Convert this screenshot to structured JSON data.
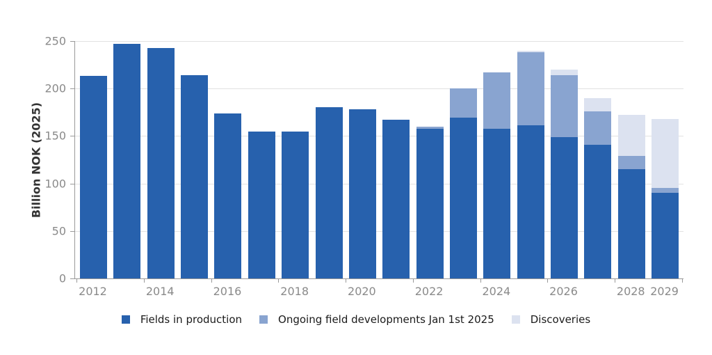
{
  "chart_data": {
    "type": "bar",
    "stacked": true,
    "title": "",
    "xlabel": "",
    "ylabel": "Billion NOK (2025)",
    "ylim": [
      0,
      250
    ],
    "yticks": [
      0,
      50,
      100,
      150,
      200,
      250
    ],
    "grid": "horizontal",
    "legend_position": "bottom",
    "categories": [
      "2012",
      "2013",
      "2014",
      "2015",
      "2016",
      "2017",
      "2018",
      "2019",
      "2020",
      "2021",
      "2022",
      "2023",
      "2024",
      "2025",
      "2026",
      "2027",
      "2028",
      "2029"
    ],
    "series": [
      {
        "name": "Fields in production",
        "color": "#2761ad",
        "values": [
          213,
          247,
          243,
          214,
          174,
          155,
          155,
          180,
          178,
          167,
          158,
          169,
          158,
          161,
          149,
          141,
          115,
          90
        ]
      },
      {
        "name": "Ongoing field developments Jan 1st 2025",
        "color": "#89a4d0",
        "values": [
          0,
          0,
          0,
          0,
          0,
          0,
          0,
          0,
          0,
          0,
          2,
          31,
          59,
          77,
          65,
          35,
          14,
          5
        ]
      },
      {
        "name": "Discoveries",
        "color": "#dce2f0",
        "values": [
          0,
          0,
          0,
          0,
          0,
          0,
          0,
          0,
          0,
          0,
          0,
          0,
          0,
          2,
          6,
          14,
          43,
          73
        ]
      }
    ],
    "stack_totals": [
      213,
      247,
      243,
      214,
      174,
      155,
      155,
      180,
      178,
      167,
      160,
      200,
      217,
      240,
      220,
      190,
      172,
      168
    ],
    "x_axis_labels": [
      {
        "text": "2012",
        "bar_index": 0
      },
      {
        "text": "2014",
        "bar_index": 2
      },
      {
        "text": "2016",
        "bar_index": 4
      },
      {
        "text": "2018",
        "bar_index": 6
      },
      {
        "text": "2020",
        "bar_index": 8
      },
      {
        "text": "2022",
        "bar_index": 10
      },
      {
        "text": "2024",
        "bar_index": 12
      },
      {
        "text": "2026",
        "bar_index": 14
      },
      {
        "text": "2028",
        "bar_index": 16
      },
      {
        "text": "2029",
        "bar_index": 17
      }
    ],
    "x_axis_tick_slots": [
      0,
      2,
      4,
      6,
      8,
      10,
      12,
      14,
      16,
      18
    ],
    "colors": {
      "grid_line": "#e2e2e2",
      "axis_line": "#999999",
      "tick_label": "#8a8a8a",
      "axis_title": "#333333",
      "legend_text": "#1a1a1a",
      "background": "#ffffff"
    }
  }
}
